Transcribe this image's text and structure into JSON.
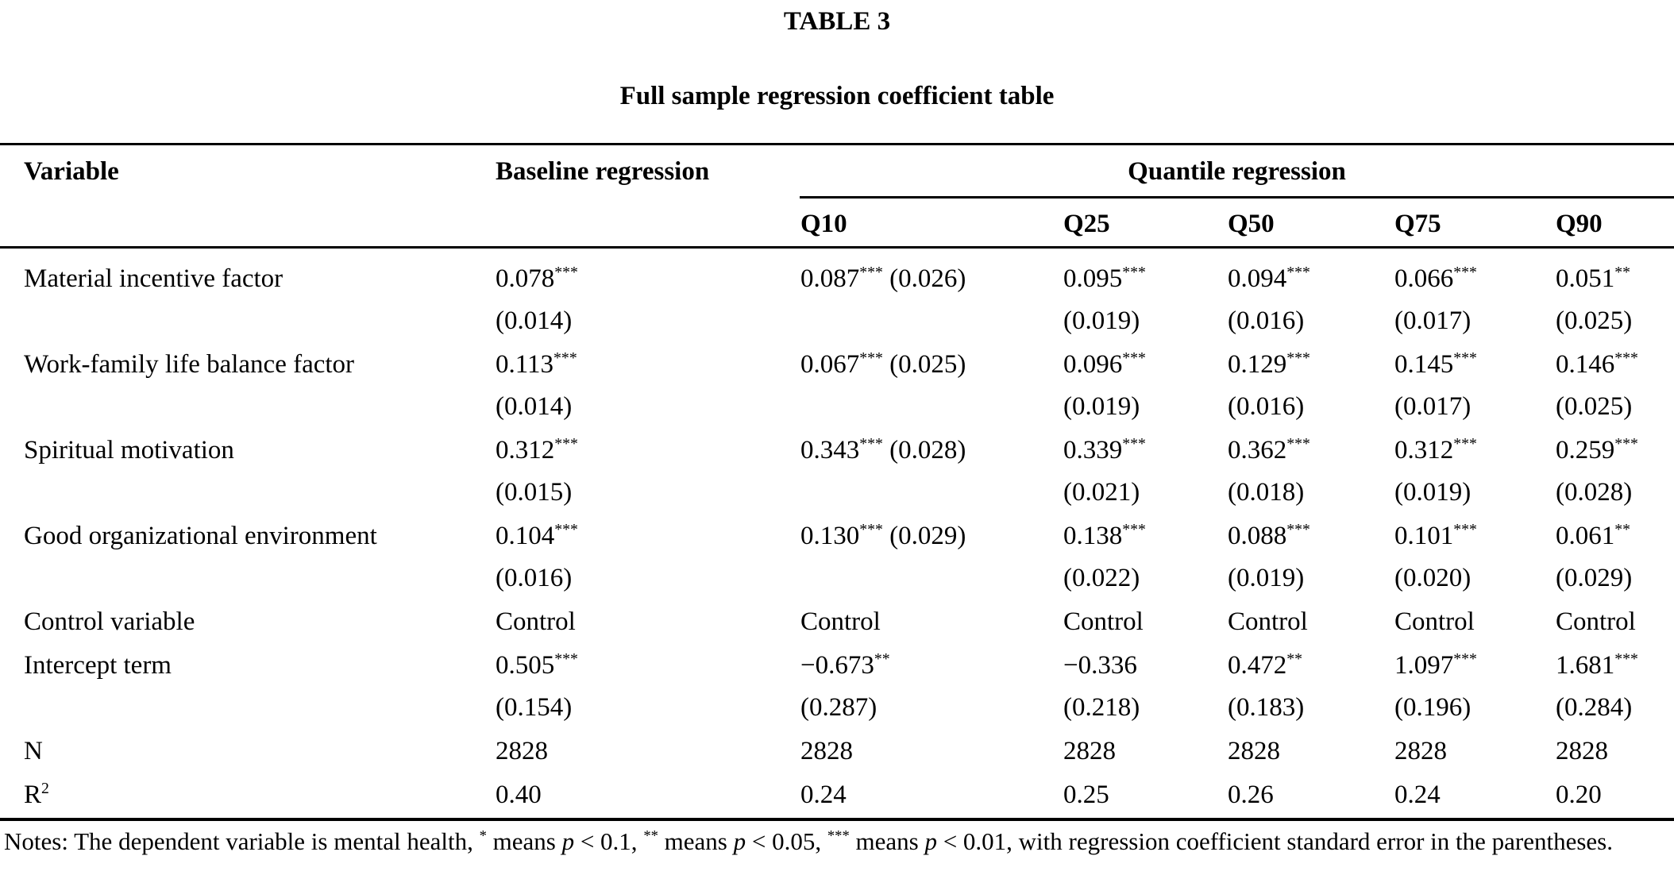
{
  "page": {
    "table_number": "TABLE 3",
    "table_title": "Full sample regression coefficient table"
  },
  "table": {
    "headers": {
      "variable": "Variable",
      "baseline": "Baseline regression",
      "quantile_group": "Quantile regression",
      "quantiles": [
        "Q10",
        "Q25",
        "Q50",
        "Q75",
        "Q90"
      ]
    },
    "rows": [
      {
        "label": "Material incentive factor",
        "cells": [
          {
            "value": "0.078",
            "stars": "***",
            "se": "(0.014)",
            "inline": false
          },
          {
            "value": "0.087",
            "stars": "***",
            "se": "(0.026)",
            "inline": true
          },
          {
            "value": "0.095",
            "stars": "***",
            "se": "(0.019)",
            "inline": false
          },
          {
            "value": "0.094",
            "stars": "***",
            "se": "(0.016)",
            "inline": false
          },
          {
            "value": "0.066",
            "stars": "***",
            "se": "(0.017)",
            "inline": false
          },
          {
            "value": "0.051",
            "stars": "**",
            "se": "(0.025)",
            "inline": false
          }
        ]
      },
      {
        "label": "Work-family life balance factor",
        "cells": [
          {
            "value": "0.113",
            "stars": "***",
            "se": "(0.014)",
            "inline": false
          },
          {
            "value": "0.067",
            "stars": "***",
            "se": "(0.025)",
            "inline": true
          },
          {
            "value": "0.096",
            "stars": "***",
            "se": "(0.019)",
            "inline": false
          },
          {
            "value": "0.129",
            "stars": "***",
            "se": "(0.016)",
            "inline": false
          },
          {
            "value": "0.145",
            "stars": "***",
            "se": "(0.017)",
            "inline": false
          },
          {
            "value": "0.146",
            "stars": "***",
            "se": "(0.025)",
            "inline": false
          }
        ]
      },
      {
        "label": "Spiritual motivation",
        "cells": [
          {
            "value": "0.312",
            "stars": "***",
            "se": "(0.015)",
            "inline": false
          },
          {
            "value": "0.343",
            "stars": "***",
            "se": "(0.028)",
            "inline": true
          },
          {
            "value": "0.339",
            "stars": "***",
            "se": "(0.021)",
            "inline": false
          },
          {
            "value": "0.362",
            "stars": "***",
            "se": "(0.018)",
            "inline": false
          },
          {
            "value": "0.312",
            "stars": "***",
            "se": "(0.019)",
            "inline": false
          },
          {
            "value": "0.259",
            "stars": "***",
            "se": "(0.028)",
            "inline": false
          }
        ]
      },
      {
        "label": "Good organizational environment",
        "cells": [
          {
            "value": "0.104",
            "stars": "***",
            "se": "(0.016)",
            "inline": false
          },
          {
            "value": "0.130",
            "stars": "***",
            "se": "(0.029)",
            "inline": true
          },
          {
            "value": "0.138",
            "stars": "***",
            "se": "(0.022)",
            "inline": false
          },
          {
            "value": "0.088",
            "stars": "***",
            "se": "(0.019)",
            "inline": false
          },
          {
            "value": "0.101",
            "stars": "***",
            "se": "(0.020)",
            "inline": false
          },
          {
            "value": "0.061",
            "stars": "**",
            "se": "(0.029)",
            "inline": false
          }
        ]
      },
      {
        "label": "Control variable",
        "cells": [
          {
            "value": "Control"
          },
          {
            "value": "Control"
          },
          {
            "value": "Control"
          },
          {
            "value": "Control"
          },
          {
            "value": "Control"
          },
          {
            "value": "Control"
          }
        ]
      },
      {
        "label": "Intercept term",
        "cells": [
          {
            "value": "0.505",
            "stars": "***",
            "se": "(0.154)",
            "inline": false
          },
          {
            "value": "−0.673",
            "stars": "**",
            "se": "(0.287)",
            "inline": false
          },
          {
            "value": "−0.336",
            "stars": "",
            "se": "(0.218)",
            "inline": false
          },
          {
            "value": "0.472",
            "stars": "**",
            "se": "(0.183)",
            "inline": false
          },
          {
            "value": "1.097",
            "stars": "***",
            "se": "(0.196)",
            "inline": false
          },
          {
            "value": "1.681",
            "stars": "***",
            "se": "(0.284)",
            "inline": false
          }
        ]
      },
      {
        "label": "N",
        "cells": [
          {
            "value": "2828"
          },
          {
            "value": "2828"
          },
          {
            "value": "2828"
          },
          {
            "value": "2828"
          },
          {
            "value": "2828"
          },
          {
            "value": "2828"
          }
        ]
      },
      {
        "label": "R",
        "label_sup": "2",
        "cells": [
          {
            "value": "0.40"
          },
          {
            "value": "0.24"
          },
          {
            "value": "0.25"
          },
          {
            "value": "0.26"
          },
          {
            "value": "0.24"
          },
          {
            "value": "0.20"
          }
        ]
      }
    ]
  },
  "notes": {
    "segments": [
      {
        "t": "Notes: The dependent variable is mental health, "
      },
      {
        "t": "*",
        "sup": true
      },
      {
        "t": " means "
      },
      {
        "t": "p",
        "italic": true
      },
      {
        "t": " < 0.1, "
      },
      {
        "t": "**",
        "sup": true
      },
      {
        "t": " means "
      },
      {
        "t": "p",
        "italic": true
      },
      {
        "t": " < 0.05, "
      },
      {
        "t": "***",
        "sup": true
      },
      {
        "t": " means "
      },
      {
        "t": "p",
        "italic": true
      },
      {
        "t": " < 0.01, with regression coefficient standard error in the parentheses."
      }
    ]
  }
}
